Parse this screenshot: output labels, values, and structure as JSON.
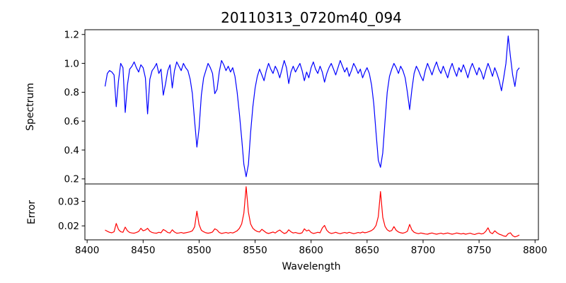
{
  "chart_data": {
    "type": "line",
    "title": "20110313_0720m40_094",
    "xlabel": "Wavelength",
    "grid": false,
    "legend": null,
    "background": "#ffffff",
    "axis_color": "#000000",
    "xlim": [
      8398,
      8803
    ],
    "xticks": [
      8400,
      8450,
      8500,
      8550,
      8600,
      8650,
      8700,
      8750,
      8800
    ],
    "xtick_labels": [
      "8400",
      "8450",
      "8500",
      "8550",
      "8600",
      "8650",
      "8700",
      "8750",
      "8800"
    ],
    "x": [
      8416,
      8418,
      8420,
      8422,
      8424,
      8426,
      8428,
      8430,
      8432,
      8434,
      8436,
      8438,
      8440,
      8442,
      8444,
      8446,
      8448,
      8450,
      8452,
      8454,
      8456,
      8458,
      8460,
      8462,
      8464,
      8466,
      8468,
      8470,
      8472,
      8474,
      8476,
      8478,
      8480,
      8482,
      8484,
      8486,
      8488,
      8490,
      8492,
      8494,
      8496,
      8498,
      8500,
      8502,
      8504,
      8506,
      8508,
      8510,
      8512,
      8514,
      8516,
      8518,
      8520,
      8522,
      8524,
      8526,
      8528,
      8530,
      8532,
      8534,
      8536,
      8538,
      8540,
      8542,
      8544,
      8546,
      8548,
      8550,
      8552,
      8554,
      8556,
      8558,
      8560,
      8562,
      8564,
      8566,
      8568,
      8570,
      8572,
      8574,
      8576,
      8578,
      8580,
      8582,
      8584,
      8586,
      8588,
      8590,
      8592,
      8594,
      8596,
      8598,
      8600,
      8602,
      8604,
      8606,
      8608,
      8610,
      8612,
      8614,
      8616,
      8618,
      8620,
      8622,
      8624,
      8626,
      8628,
      8630,
      8632,
      8634,
      8636,
      8638,
      8640,
      8642,
      8644,
      8646,
      8648,
      8650,
      8652,
      8654,
      8656,
      8658,
      8660,
      8662,
      8664,
      8666,
      8668,
      8670,
      8672,
      8674,
      8676,
      8678,
      8680,
      8682,
      8684,
      8686,
      8688,
      8690,
      8692,
      8694,
      8696,
      8698,
      8700,
      8702,
      8704,
      8706,
      8708,
      8710,
      8712,
      8714,
      8716,
      8718,
      8720,
      8722,
      8724,
      8726,
      8728,
      8730,
      8732,
      8734,
      8736,
      8738,
      8740,
      8742,
      8744,
      8746,
      8748,
      8750,
      8752,
      8754,
      8756,
      8758,
      8760,
      8762,
      8764,
      8766,
      8768,
      8770,
      8772,
      8774,
      8776,
      8778,
      8780,
      8782,
      8784,
      8786
    ],
    "panels": [
      {
        "name": "spectrum",
        "ylabel": "Spectrum",
        "line_color": "#0000ff",
        "ylim": [
          0.165,
          1.233
        ],
        "yticks": [
          0.2,
          0.4,
          0.6,
          0.8,
          1.0,
          1.2
        ],
        "ytick_labels": [
          "0.2",
          "0.4",
          "0.6",
          "0.8",
          "1.0",
          "1.2"
        ],
        "values": [
          0.84,
          0.93,
          0.95,
          0.94,
          0.92,
          0.7,
          0.88,
          1.0,
          0.97,
          0.66,
          0.85,
          0.96,
          0.98,
          1.01,
          0.97,
          0.94,
          0.99,
          0.97,
          0.9,
          0.65,
          0.89,
          0.95,
          0.97,
          1.0,
          0.93,
          0.96,
          0.78,
          0.86,
          0.95,
          0.99,
          0.83,
          0.95,
          1.01,
          0.98,
          0.95,
          1.0,
          0.97,
          0.95,
          0.89,
          0.79,
          0.6,
          0.42,
          0.55,
          0.78,
          0.9,
          0.95,
          1.0,
          0.97,
          0.93,
          0.79,
          0.82,
          0.94,
          1.02,
          0.99,
          0.95,
          0.98,
          0.94,
          0.97,
          0.91,
          0.8,
          0.65,
          0.48,
          0.3,
          0.215,
          0.3,
          0.52,
          0.7,
          0.83,
          0.91,
          0.96,
          0.92,
          0.88,
          0.95,
          1.0,
          0.96,
          0.93,
          0.98,
          0.95,
          0.9,
          0.96,
          1.02,
          0.97,
          0.86,
          0.94,
          0.98,
          0.94,
          0.97,
          1.0,
          0.95,
          0.88,
          0.94,
          0.9,
          0.97,
          1.01,
          0.96,
          0.93,
          0.98,
          0.94,
          0.87,
          0.93,
          0.97,
          1.0,
          0.96,
          0.92,
          0.97,
          1.02,
          0.98,
          0.94,
          0.97,
          0.91,
          0.95,
          1.0,
          0.97,
          0.93,
          0.96,
          0.9,
          0.94,
          0.97,
          0.93,
          0.85,
          0.72,
          0.52,
          0.33,
          0.28,
          0.38,
          0.6,
          0.8,
          0.91,
          0.96,
          1.0,
          0.97,
          0.93,
          0.98,
          0.95,
          0.9,
          0.8,
          0.68,
          0.82,
          0.93,
          0.98,
          0.95,
          0.91,
          0.88,
          0.95,
          1.0,
          0.96,
          0.92,
          0.97,
          1.01,
          0.96,
          0.93,
          0.98,
          0.94,
          0.9,
          0.96,
          1.0,
          0.95,
          0.91,
          0.97,
          0.94,
          0.99,
          0.95,
          0.9,
          0.96,
          1.0,
          0.96,
          0.92,
          0.97,
          0.94,
          0.89,
          0.95,
          1.0,
          0.96,
          0.91,
          0.97,
          0.93,
          0.88,
          0.81,
          0.9,
          1.0,
          1.19,
          1.05,
          0.92,
          0.84,
          0.95,
          0.97
        ]
      },
      {
        "name": "error",
        "ylabel": "Error",
        "line_color": "#ff0000",
        "ylim": [
          0.0143,
          0.0371
        ],
        "yticks": [
          0.02,
          0.03
        ],
        "ytick_labels": [
          "0.02",
          "0.03"
        ],
        "values": [
          0.0183,
          0.0178,
          0.0174,
          0.0172,
          0.0176,
          0.021,
          0.0185,
          0.0176,
          0.0174,
          0.0195,
          0.018,
          0.0173,
          0.0171,
          0.017,
          0.0173,
          0.0177,
          0.019,
          0.018,
          0.0183,
          0.019,
          0.0178,
          0.0173,
          0.0171,
          0.017,
          0.0174,
          0.0172,
          0.0185,
          0.018,
          0.0173,
          0.0171,
          0.0184,
          0.0175,
          0.017,
          0.0171,
          0.0173,
          0.017,
          0.0172,
          0.0174,
          0.0176,
          0.018,
          0.0196,
          0.026,
          0.0205,
          0.0182,
          0.0176,
          0.0172,
          0.017,
          0.0172,
          0.0175,
          0.0188,
          0.0183,
          0.0173,
          0.0169,
          0.0171,
          0.0173,
          0.017,
          0.0173,
          0.0171,
          0.0175,
          0.018,
          0.019,
          0.0208,
          0.0252,
          0.036,
          0.0256,
          0.0208,
          0.019,
          0.0182,
          0.0177,
          0.0175,
          0.0186,
          0.0179,
          0.0172,
          0.0169,
          0.0172,
          0.0175,
          0.0171,
          0.0178,
          0.0183,
          0.0175,
          0.0169,
          0.0172,
          0.0184,
          0.0176,
          0.0171,
          0.0173,
          0.017,
          0.0169,
          0.0172,
          0.0188,
          0.0179,
          0.0183,
          0.0173,
          0.0169,
          0.0171,
          0.0174,
          0.0172,
          0.0191,
          0.0202,
          0.0182,
          0.0173,
          0.0169,
          0.0171,
          0.0174,
          0.017,
          0.0168,
          0.0171,
          0.0173,
          0.017,
          0.0174,
          0.0171,
          0.0168,
          0.017,
          0.0173,
          0.0171,
          0.0175,
          0.0172,
          0.0174,
          0.0177,
          0.0181,
          0.0188,
          0.0202,
          0.0238,
          0.034,
          0.0235,
          0.0198,
          0.0184,
          0.0178,
          0.0181,
          0.0197,
          0.0182,
          0.0175,
          0.0172,
          0.017,
          0.0173,
          0.0178,
          0.0206,
          0.0183,
          0.0174,
          0.017,
          0.0168,
          0.0171,
          0.0169,
          0.0167,
          0.0166,
          0.0169,
          0.0171,
          0.0168,
          0.0166,
          0.0168,
          0.017,
          0.0167,
          0.0169,
          0.0171,
          0.0168,
          0.0166,
          0.0168,
          0.0171,
          0.0169,
          0.0167,
          0.0169,
          0.0166,
          0.0168,
          0.017,
          0.0167,
          0.0165,
          0.0168,
          0.017,
          0.0167,
          0.0169,
          0.0178,
          0.0192,
          0.0173,
          0.0168,
          0.018,
          0.0172,
          0.0166,
          0.0163,
          0.0159,
          0.0157,
          0.0168,
          0.0172,
          0.016,
          0.0155,
          0.0158,
          0.0163
        ]
      }
    ]
  }
}
